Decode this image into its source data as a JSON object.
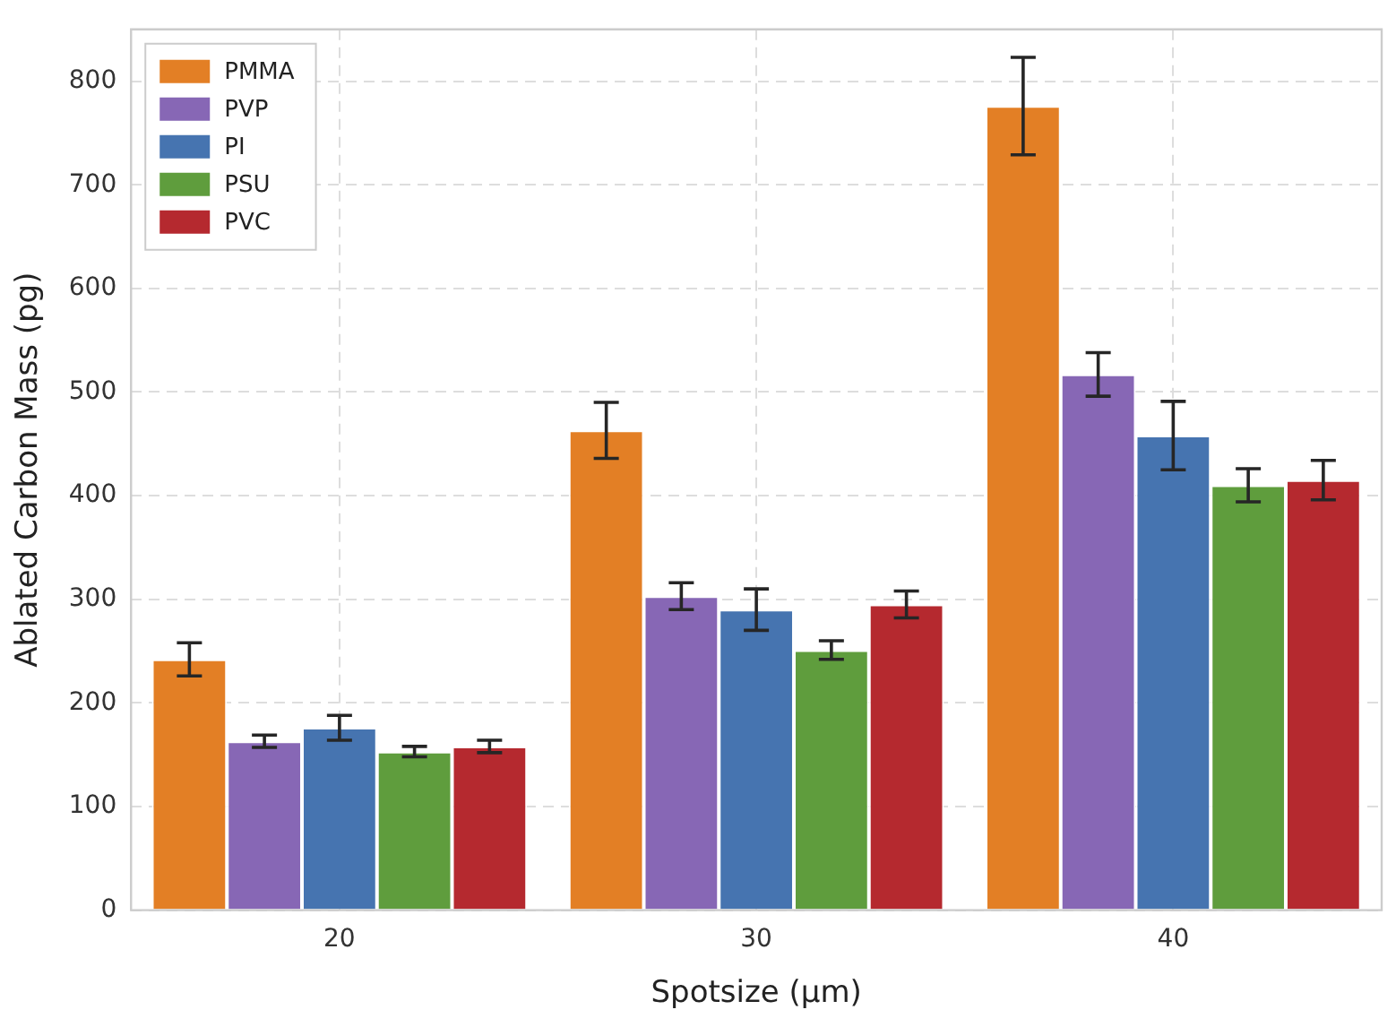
{
  "chart_data": {
    "type": "bar",
    "xlabel": "Spotsize (μm)",
    "ylabel": "Ablated Carbon Mass (pg)",
    "categories": [
      "20",
      "30",
      "40"
    ],
    "series": [
      {
        "name": "PMMA",
        "color": "#e37f25",
        "values": [
          242,
          463,
          776
        ],
        "errors": [
          16,
          27,
          47
        ]
      },
      {
        "name": "PVP",
        "color": "#8767b5",
        "values": [
          163,
          303,
          517
        ],
        "errors": [
          6,
          13,
          21
        ]
      },
      {
        "name": "PI",
        "color": "#4674b0",
        "values": [
          176,
          290,
          458
        ],
        "errors": [
          12,
          20,
          33
        ]
      },
      {
        "name": "PSU",
        "color": "#5f9d3d",
        "values": [
          153,
          251,
          410
        ],
        "errors": [
          5,
          9,
          16
        ]
      },
      {
        "name": "PVC",
        "color": "#b5292f",
        "values": [
          158,
          295,
          415
        ],
        "errors": [
          6,
          13,
          19
        ]
      }
    ],
    "ylim": [
      0,
      850
    ],
    "yticks": [
      0,
      100,
      200,
      300,
      400,
      500,
      600,
      700,
      800
    ],
    "grid": true,
    "legend": "top left"
  }
}
